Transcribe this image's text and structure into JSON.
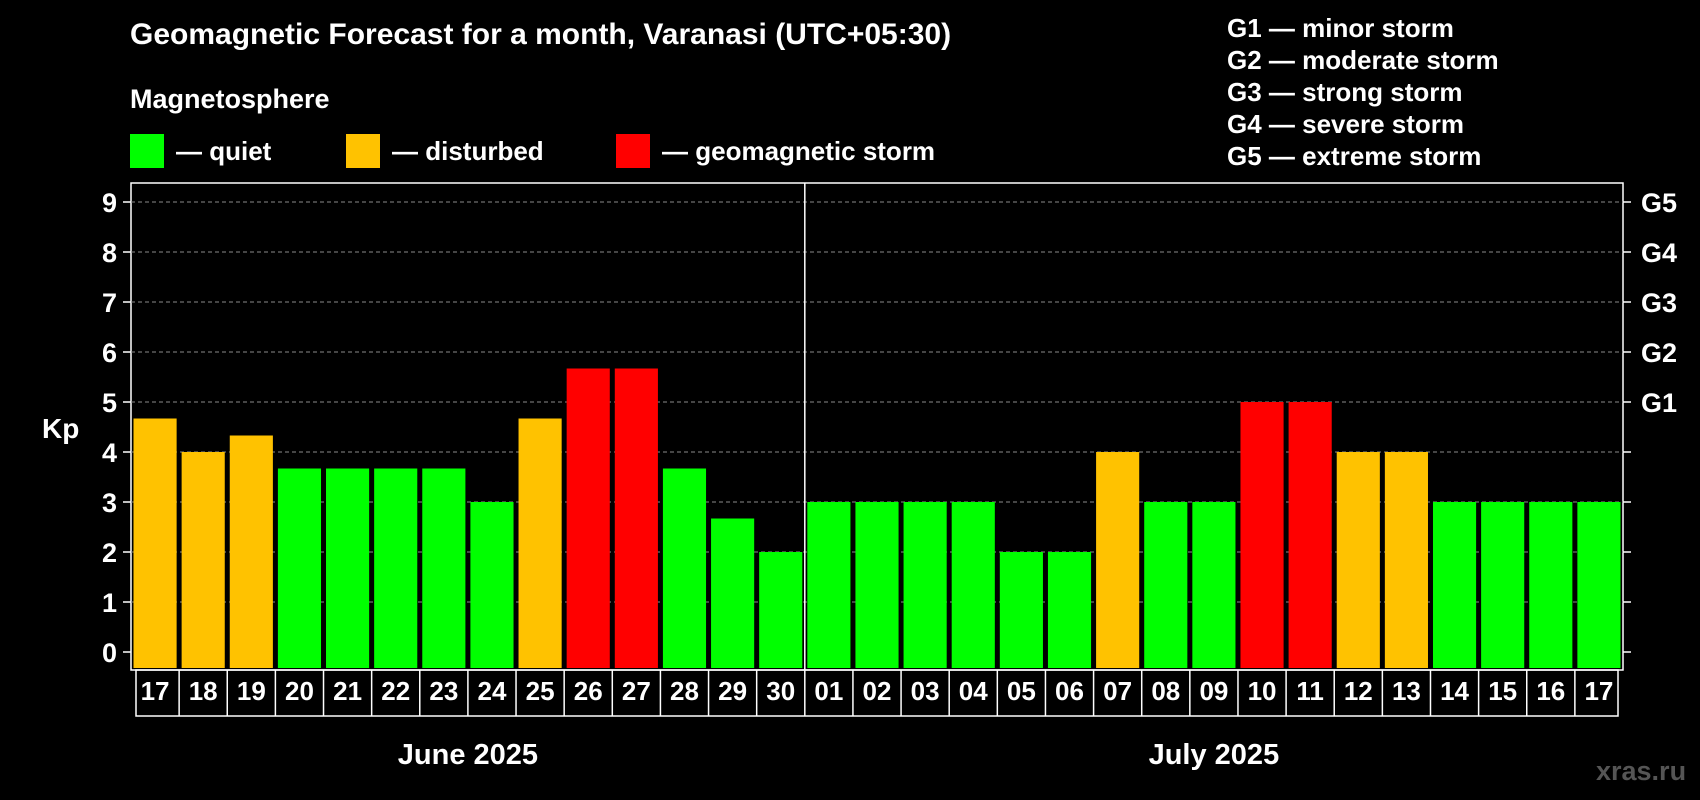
{
  "title": "Geomagnetic Forecast for a month, Varanasi (UTC+05:30)",
  "section_label": "Magnetosphere",
  "legend": [
    {
      "label": "— quiet",
      "color": "#00ff00"
    },
    {
      "label": "— disturbed",
      "color": "#ffc200"
    },
    {
      "label": "— geomagnetic storm",
      "color": "#ff0000"
    }
  ],
  "storm_levels": [
    "G1 — minor storm",
    "G2 — moderate storm",
    "G3 — strong storm",
    "G4 — severe storm",
    "G5 — extreme storm"
  ],
  "watermark": "xras.ru",
  "chart_data": {
    "type": "bar",
    "ylabel": "Kp",
    "ylim": [
      0,
      9
    ],
    "yticks": [
      0,
      1,
      2,
      3,
      4,
      5,
      6,
      7,
      8,
      9
    ],
    "right_axis_labels": [
      {
        "value": 5,
        "label": "G1"
      },
      {
        "value": 6,
        "label": "G2"
      },
      {
        "value": 7,
        "label": "G3"
      },
      {
        "value": 8,
        "label": "G4"
      },
      {
        "value": 9,
        "label": "G5"
      }
    ],
    "grid": "horizontal dashed",
    "categories": [
      "17",
      "18",
      "19",
      "20",
      "21",
      "22",
      "23",
      "24",
      "25",
      "26",
      "27",
      "28",
      "29",
      "30",
      "01",
      "02",
      "03",
      "04",
      "05",
      "06",
      "07",
      "08",
      "09",
      "10",
      "11",
      "12",
      "13",
      "14",
      "15",
      "16",
      "17"
    ],
    "values": [
      4.67,
      4.0,
      4.33,
      3.67,
      3.67,
      3.67,
      3.67,
      3.0,
      4.67,
      5.67,
      5.67,
      3.67,
      2.67,
      2.0,
      3.0,
      3.0,
      3.0,
      3.0,
      2.0,
      2.0,
      4.0,
      3.0,
      3.0,
      5.0,
      5.0,
      4.0,
      4.0,
      3.0,
      3.0,
      3.0,
      3.0
    ],
    "levels": [
      "disturbed",
      "disturbed",
      "disturbed",
      "quiet",
      "quiet",
      "quiet",
      "quiet",
      "quiet",
      "disturbed",
      "storm",
      "storm",
      "quiet",
      "quiet",
      "quiet",
      "quiet",
      "quiet",
      "quiet",
      "quiet",
      "quiet",
      "quiet",
      "disturbed",
      "quiet",
      "quiet",
      "storm",
      "storm",
      "disturbed",
      "disturbed",
      "quiet",
      "quiet",
      "quiet",
      "quiet"
    ],
    "level_colors": {
      "quiet": "#00ff00",
      "disturbed": "#ffc200",
      "storm": "#ff0000"
    },
    "months": [
      {
        "label": "June 2025",
        "start": 0,
        "end": 13
      },
      {
        "label": "July 2025",
        "start": 14,
        "end": 30
      }
    ]
  }
}
